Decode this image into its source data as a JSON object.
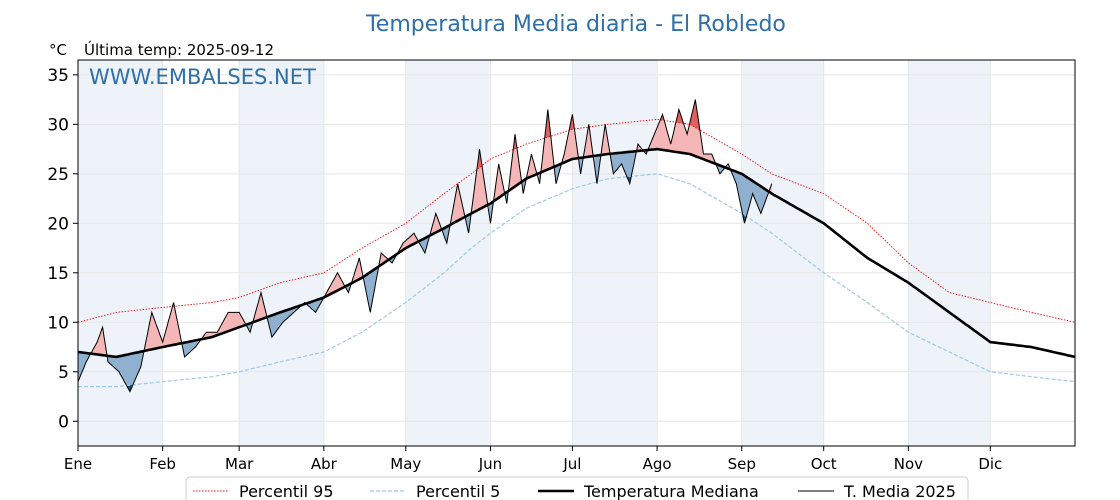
{
  "chart_data": {
    "type": "line",
    "title": "Temperatura Media diaria - El Robledo",
    "unit_label": "°C",
    "last_temp_label": "Última temp: 2025-09-12",
    "watermark": "WWW.EMBALSES.NET",
    "xlabel": "",
    "ylabel": "",
    "xlim": [
      1,
      366
    ],
    "ylim": [
      -2.5,
      36.5
    ],
    "y_ticks": [
      0,
      5,
      10,
      15,
      20,
      25,
      30,
      35
    ],
    "x_ticks": [
      {
        "label": "Ene",
        "day": 1
      },
      {
        "label": "Feb",
        "day": 32
      },
      {
        "label": "Mar",
        "day": 60
      },
      {
        "label": "Abr",
        "day": 91
      },
      {
        "label": "May",
        "day": 121
      },
      {
        "label": "Jun",
        "day": 152
      },
      {
        "label": "Jul",
        "day": 182
      },
      {
        "label": "Ago",
        "day": 213
      },
      {
        "label": "Sep",
        "day": 244
      },
      {
        "label": "Oct",
        "day": 274
      },
      {
        "label": "Nov",
        "day": 305
      },
      {
        "label": "Dic",
        "day": 335
      }
    ],
    "grid": true,
    "legend_position": "bottom-center",
    "colors": {
      "p95": "#ff0000",
      "p5": "#9ecae1",
      "median": "#000000",
      "current": "#000000",
      "above_fill": "#f4b6b6",
      "above_strong_fill": "#e06060",
      "below_fill": "#8fb1cf",
      "below_strong_fill": "#1f4e79",
      "band_fill": "#eef3fa",
      "title": "#2e6fa7"
    },
    "series": [
      {
        "name": "Percentil 95",
        "style": "dotted",
        "x": [
          1,
          15,
          32,
          50,
          60,
          75,
          91,
          105,
          121,
          135,
          145,
          152,
          165,
          182,
          195,
          213,
          225,
          244,
          255,
          274,
          290,
          305,
          320,
          335,
          350,
          366
        ],
        "values": [
          10,
          11,
          11.5,
          12,
          12.5,
          14,
          15,
          17.5,
          20,
          23,
          25,
          26.5,
          28,
          29.5,
          30,
          30.5,
          30,
          27,
          25,
          23,
          20,
          16,
          13,
          12,
          11,
          10
        ]
      },
      {
        "name": "Percentil 5",
        "style": "dashed",
        "x": [
          1,
          15,
          32,
          50,
          60,
          75,
          91,
          105,
          121,
          135,
          145,
          152,
          165,
          182,
          195,
          213,
          225,
          244,
          255,
          274,
          290,
          305,
          320,
          335,
          350,
          366
        ],
        "values": [
          3.5,
          3.5,
          4,
          4.5,
          5,
          6,
          7,
          9,
          12,
          15,
          17.5,
          19,
          21.5,
          23.5,
          24.5,
          25,
          24,
          21,
          19,
          15,
          12,
          9,
          7,
          5,
          4.5,
          4
        ]
      },
      {
        "name": "Temperatura Mediana",
        "style": "solid-thick",
        "x": [
          1,
          15,
          32,
          50,
          60,
          75,
          91,
          105,
          121,
          135,
          145,
          152,
          165,
          182,
          195,
          213,
          225,
          244,
          255,
          274,
          290,
          305,
          320,
          335,
          350,
          366
        ],
        "values": [
          7,
          6.5,
          7.5,
          8.5,
          9.5,
          11,
          12.5,
          14.5,
          17.5,
          19.5,
          21,
          22,
          24.5,
          26.5,
          27,
          27.5,
          27,
          25,
          23,
          20,
          16.5,
          14,
          11,
          8,
          7.5,
          6.5
        ]
      },
      {
        "name": "T. Media 2025",
        "style": "solid-thin",
        "x": [
          1,
          4,
          8,
          10,
          12,
          16,
          20,
          24,
          28,
          32,
          36,
          40,
          44,
          48,
          52,
          56,
          60,
          64,
          68,
          72,
          76,
          80,
          84,
          88,
          92,
          96,
          100,
          104,
          108,
          112,
          116,
          120,
          124,
          128,
          132,
          136,
          140,
          144,
          148,
          152,
          155,
          158,
          161,
          164,
          167,
          170,
          173,
          176,
          179,
          182,
          185,
          188,
          191,
          194,
          197,
          200,
          203,
          206,
          209,
          212,
          215,
          218,
          221,
          224,
          227,
          230,
          233,
          236,
          239,
          242,
          245,
          248,
          251,
          255
        ],
        "values": [
          4,
          6,
          8,
          9.5,
          6,
          5,
          3,
          5.5,
          11,
          8,
          12,
          6.5,
          7.5,
          9,
          9,
          11,
          11,
          9,
          13,
          8.5,
          10,
          11,
          12,
          11,
          13,
          15,
          13,
          16.5,
          11,
          17,
          16,
          18,
          19,
          17,
          21,
          18,
          24,
          19,
          27.5,
          20,
          26,
          22,
          29,
          23,
          27,
          24,
          31.5,
          24,
          27,
          31,
          25,
          30,
          24,
          30,
          25,
          26,
          24,
          28,
          27,
          29,
          31,
          28,
          31.5,
          29,
          32.5,
          27,
          27,
          25,
          26,
          24,
          20,
          23,
          21,
          24
        ]
      }
    ]
  }
}
